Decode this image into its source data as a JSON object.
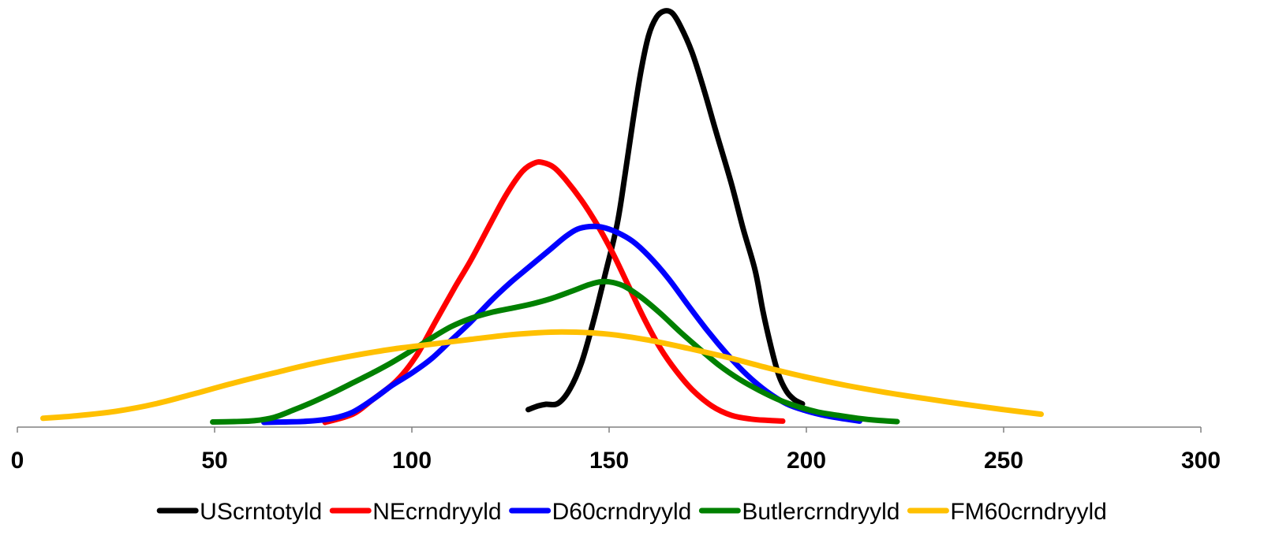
{
  "chart_data": {
    "type": "line",
    "title": "",
    "xlabel": "",
    "ylabel": "",
    "xlim": [
      0,
      300
    ],
    "ylim": [
      0,
      1
    ],
    "x_ticks": [
      "0",
      "50",
      "100",
      "150",
      "200",
      "250",
      "300"
    ],
    "x_tick_values": [
      0,
      50,
      100,
      150,
      200,
      250,
      300
    ],
    "y_axis_visible": false,
    "grid": false,
    "legend": "bottom",
    "series": [
      {
        "name": "UScrntotyld",
        "color": "#000000",
        "points": [
          [
            129.5,
            0.031
          ],
          [
            132,
            0.04
          ],
          [
            134,
            0.044
          ],
          [
            137,
            0.046
          ],
          [
            140,
            0.08
          ],
          [
            143,
            0.145
          ],
          [
            146,
            0.245
          ],
          [
            149,
            0.36
          ],
          [
            152,
            0.48
          ],
          [
            154,
            0.6
          ],
          [
            156,
            0.73
          ],
          [
            158,
            0.85
          ],
          [
            160,
            0.94
          ],
          [
            162,
            0.985
          ],
          [
            164,
            1.0
          ],
          [
            166,
            0.995
          ],
          [
            168,
            0.965
          ],
          [
            171,
            0.9
          ],
          [
            174,
            0.81
          ],
          [
            177,
            0.71
          ],
          [
            181,
            0.58
          ],
          [
            184,
            0.47
          ],
          [
            187,
            0.37
          ],
          [
            189,
            0.27
          ],
          [
            191,
            0.185
          ],
          [
            193,
            0.115
          ],
          [
            195,
            0.075
          ],
          [
            197,
            0.055
          ],
          [
            199,
            0.045
          ]
        ]
      },
      {
        "name": "NEcrndryyld",
        "color": "#ff0000",
        "points": [
          [
            78,
            0.0
          ],
          [
            85,
            0.02
          ],
          [
            90,
            0.055
          ],
          [
            96,
            0.1
          ],
          [
            101,
            0.16
          ],
          [
            106,
            0.245
          ],
          [
            111,
            0.33
          ],
          [
            115,
            0.395
          ],
          [
            120,
            0.485
          ],
          [
            124,
            0.555
          ],
          [
            128,
            0.61
          ],
          [
            131,
            0.63
          ],
          [
            133,
            0.632
          ],
          [
            136,
            0.62
          ],
          [
            139,
            0.59
          ],
          [
            143,
            0.54
          ],
          [
            147,
            0.48
          ],
          [
            151,
            0.41
          ],
          [
            155,
            0.33
          ],
          [
            159,
            0.25
          ],
          [
            163,
            0.18
          ],
          [
            167,
            0.125
          ],
          [
            171,
            0.08
          ],
          [
            176,
            0.04
          ],
          [
            181,
            0.017
          ],
          [
            186,
            0.008
          ],
          [
            190,
            0.005
          ],
          [
            194,
            0.003
          ]
        ]
      },
      {
        "name": "D60crndryyld",
        "color": "#0000ff",
        "points": [
          [
            62.5,
            0.0
          ],
          [
            68,
            0.001
          ],
          [
            74,
            0.003
          ],
          [
            80,
            0.01
          ],
          [
            85,
            0.025
          ],
          [
            90,
            0.055
          ],
          [
            95,
            0.09
          ],
          [
            100,
            0.12
          ],
          [
            105,
            0.155
          ],
          [
            110,
            0.2
          ],
          [
            115,
            0.245
          ],
          [
            120,
            0.295
          ],
          [
            125,
            0.34
          ],
          [
            130,
            0.38
          ],
          [
            135,
            0.42
          ],
          [
            139,
            0.452
          ],
          [
            142,
            0.47
          ],
          [
            145,
            0.476
          ],
          [
            148,
            0.475
          ],
          [
            152,
            0.462
          ],
          [
            156,
            0.44
          ],
          [
            160,
            0.405
          ],
          [
            165,
            0.35
          ],
          [
            170,
            0.285
          ],
          [
            175,
            0.222
          ],
          [
            180,
            0.165
          ],
          [
            185,
            0.115
          ],
          [
            190,
            0.075
          ],
          [
            195,
            0.045
          ],
          [
            200,
            0.028
          ],
          [
            205,
            0.016
          ],
          [
            210,
            0.008
          ],
          [
            213.5,
            0.003
          ]
        ]
      },
      {
        "name": "Butlercrndryyld",
        "color": "#008000",
        "points": [
          [
            49.5,
            0.001
          ],
          [
            55,
            0.002
          ],
          [
            60,
            0.004
          ],
          [
            65,
            0.012
          ],
          [
            70,
            0.03
          ],
          [
            75,
            0.05
          ],
          [
            80,
            0.072
          ],
          [
            85,
            0.096
          ],
          [
            90,
            0.12
          ],
          [
            95,
            0.146
          ],
          [
            100,
            0.175
          ],
          [
            105,
            0.205
          ],
          [
            110,
            0.233
          ],
          [
            115,
            0.253
          ],
          [
            120,
            0.267
          ],
          [
            125,
            0.277
          ],
          [
            130,
            0.287
          ],
          [
            135,
            0.3
          ],
          [
            140,
            0.317
          ],
          [
            145,
            0.335
          ],
          [
            148,
            0.342
          ],
          [
            151,
            0.34
          ],
          [
            154,
            0.33
          ],
          [
            158,
            0.305
          ],
          [
            163,
            0.265
          ],
          [
            168,
            0.22
          ],
          [
            173,
            0.178
          ],
          [
            178,
            0.138
          ],
          [
            183,
            0.105
          ],
          [
            188,
            0.078
          ],
          [
            193,
            0.055
          ],
          [
            198,
            0.038
          ],
          [
            203,
            0.025
          ],
          [
            208,
            0.017
          ],
          [
            213,
            0.01
          ],
          [
            218,
            0.005
          ],
          [
            223,
            0.002
          ]
        ]
      },
      {
        "name": "FM60crndryyld",
        "color": "#ffc000",
        "points": [
          [
            6.5,
            0.01
          ],
          [
            15,
            0.016
          ],
          [
            25,
            0.027
          ],
          [
            35,
            0.045
          ],
          [
            45,
            0.07
          ],
          [
            55,
            0.096
          ],
          [
            65,
            0.12
          ],
          [
            75,
            0.143
          ],
          [
            85,
            0.162
          ],
          [
            95,
            0.178
          ],
          [
            105,
            0.19
          ],
          [
            115,
            0.202
          ],
          [
            125,
            0.213
          ],
          [
            132,
            0.218
          ],
          [
            138,
            0.22
          ],
          [
            145,
            0.218
          ],
          [
            152,
            0.212
          ],
          [
            160,
            0.2
          ],
          [
            170,
            0.18
          ],
          [
            180,
            0.158
          ],
          [
            190,
            0.133
          ],
          [
            200,
            0.11
          ],
          [
            210,
            0.09
          ],
          [
            220,
            0.073
          ],
          [
            230,
            0.058
          ],
          [
            240,
            0.044
          ],
          [
            250,
            0.031
          ],
          [
            259.5,
            0.02
          ]
        ]
      }
    ]
  }
}
